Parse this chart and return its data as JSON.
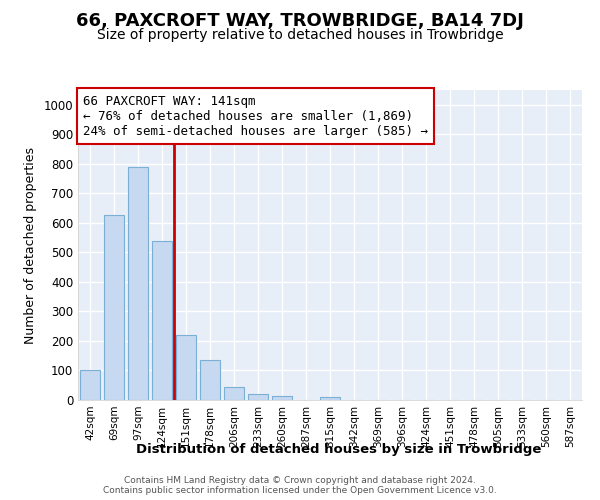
{
  "title": "66, PAXCROFT WAY, TROWBRIDGE, BA14 7DJ",
  "subtitle": "Size of property relative to detached houses in Trowbridge",
  "xlabel": "Distribution of detached houses by size in Trowbridge",
  "ylabel": "Number of detached properties",
  "footer_line1": "Contains HM Land Registry data © Crown copyright and database right 2024.",
  "footer_line2": "Contains public sector information licensed under the Open Government Licence v3.0.",
  "bar_categories": [
    "42sqm",
    "69sqm",
    "97sqm",
    "124sqm",
    "151sqm",
    "178sqm",
    "206sqm",
    "233sqm",
    "260sqm",
    "287sqm",
    "315sqm",
    "342sqm",
    "369sqm",
    "396sqm",
    "424sqm",
    "451sqm",
    "478sqm",
    "505sqm",
    "533sqm",
    "560sqm",
    "587sqm"
  ],
  "bar_values": [
    100,
    625,
    790,
    540,
    220,
    135,
    45,
    20,
    15,
    0,
    10,
    0,
    0,
    0,
    0,
    0,
    0,
    0,
    0,
    0,
    0
  ],
  "bar_color": "#c6d9f0",
  "bar_edgecolor": "#7bafd4",
  "annotation_line1": "66 PAXCROFT WAY: 141sqm",
  "annotation_line2": "← 76% of detached houses are smaller (1,869)",
  "annotation_line3": "24% of semi-detached houses are larger (585) →",
  "vline_color": "#cc0000",
  "vline_x": 4.0,
  "annotation_box_color": "#cc0000",
  "ylim": [
    0,
    1050
  ],
  "yticks": [
    0,
    100,
    200,
    300,
    400,
    500,
    600,
    700,
    800,
    900,
    1000
  ],
  "background_color": "#e8eef8",
  "grid_color": "#ffffff",
  "title_fontsize": 13,
  "subtitle_fontsize": 10,
  "annotation_fontsize": 9,
  "bar_width": 0.85
}
